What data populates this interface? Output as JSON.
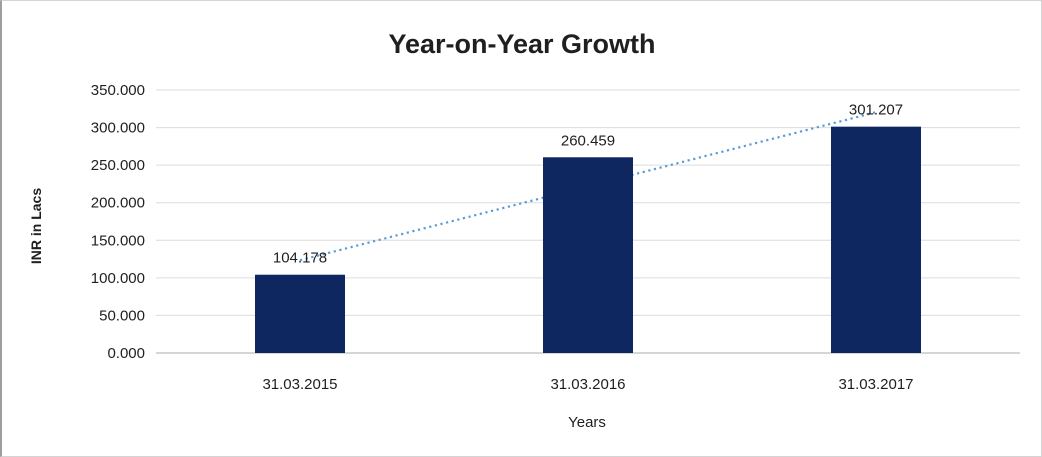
{
  "chart_data": {
    "type": "bar",
    "title": "Year-on-Year Growth",
    "xlabel": "Years",
    "ylabel": "INR in Lacs",
    "categories": [
      "31.03.2015",
      "31.03.2016",
      "31.03.2017"
    ],
    "values": [
      104.178,
      260.459,
      301.207
    ],
    "data_labels": [
      "104.178",
      "260.459",
      "301.207"
    ],
    "ylim": [
      0,
      350
    ],
    "ytick_step": 50,
    "ytick_decimals": 3,
    "grid": true,
    "legend": "none",
    "colors": {
      "bar": "#0e2760",
      "trendline": "#5b9bd5",
      "gridline": "#dcdcdc",
      "axis_line": "#c8c8c8",
      "text": "#1f1f1f",
      "background": "#ffffff",
      "frame_border": "#d4d4d4"
    },
    "trendline": {
      "type": "linear",
      "style": "dotted"
    }
  }
}
